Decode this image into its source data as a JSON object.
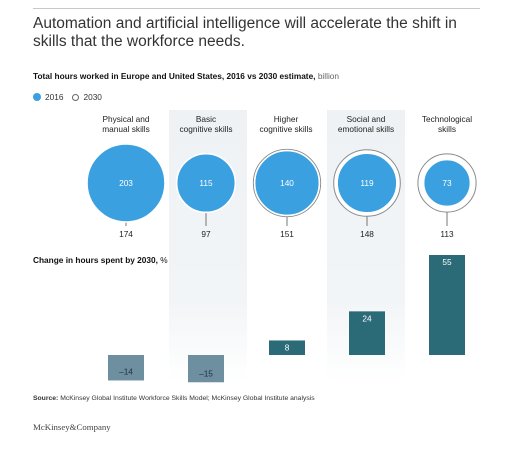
{
  "headline": "Automation and artificial intelligence will accelerate the shift in skills that the workforce needs.",
  "subtitle_bold": "Total hours worked in Europe and United States, 2016 vs 2030 estimate,",
  "subtitle_unit": "billion",
  "legend": {
    "item1": "2016",
    "item2": "2030"
  },
  "change_label_bold": "Change in hours spent by 2030,",
  "change_label_unit": "%",
  "source_label": "Source:",
  "source_text": "McKinsey Global Institute Workforce Skills Model; McKinsey Global Institute analysis",
  "brand": "McKinsey&Company",
  "colors": {
    "circle_2016": "#3aa0e0",
    "circle_2030_outline": "#8a8a8a",
    "bar_positive": "#2b6b78",
    "bar_negative": "#6e8fa0",
    "band_shade": "#eef2f5"
  },
  "chart_data": {
    "type": "bubble+bar",
    "categories": [
      "Physical and manual skills",
      "Basic cognitive skills",
      "Higher cognitive skills",
      "Social and emotional skills",
      "Technological skills"
    ],
    "category_lines": [
      [
        "Physical and",
        "manual skills"
      ],
      [
        "Basic",
        "cognitive skills"
      ],
      [
        "Higher",
        "cognitive skills"
      ],
      [
        "Social and",
        "emotional skills"
      ],
      [
        "Technological",
        "skills"
      ]
    ],
    "hours_2016": [
      203,
      115,
      140,
      119,
      73
    ],
    "hours_2030": [
      174,
      97,
      151,
      148,
      113
    ],
    "hours_2016_labels": [
      "203",
      "115",
      "140",
      "119",
      "73"
    ],
    "hours_2030_labels": [
      "174",
      "97",
      "151",
      "148",
      "113"
    ],
    "change_pct": [
      -14,
      -15,
      8,
      24,
      55
    ],
    "change_labels": [
      "–14",
      "–15",
      "8",
      "24",
      "55"
    ]
  }
}
